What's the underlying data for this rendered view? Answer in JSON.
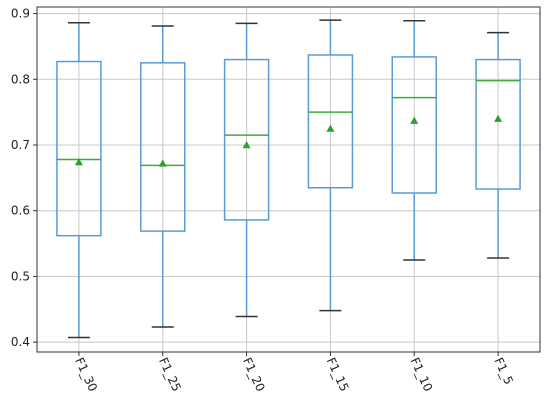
{
  "chart_data": {
    "type": "box",
    "title": "",
    "xlabel": "",
    "ylabel": "",
    "ylim": [
      0.385,
      0.91
    ],
    "grid": true,
    "yticks": [
      0.4,
      0.5,
      0.6,
      0.7,
      0.8,
      0.9
    ],
    "ytick_labels": [
      "0.4",
      "0.5",
      "0.6",
      "0.7",
      "0.8",
      "0.9"
    ],
    "categories": [
      "F1_30",
      "F1_25",
      "F1_20",
      "F1_15",
      "F1_10",
      "F1_5"
    ],
    "boxes": [
      {
        "label": "F1_30",
        "whisker_low": 0.407,
        "q1": 0.562,
        "median": 0.678,
        "q3": 0.827,
        "whisker_high": 0.886,
        "mean": 0.674
      },
      {
        "label": "F1_25",
        "whisker_low": 0.423,
        "q1": 0.569,
        "median": 0.669,
        "q3": 0.825,
        "whisker_high": 0.881,
        "mean": 0.672
      },
      {
        "label": "F1_20",
        "whisker_low": 0.439,
        "q1": 0.586,
        "median": 0.715,
        "q3": 0.83,
        "whisker_high": 0.885,
        "mean": 0.7
      },
      {
        "label": "F1_15",
        "whisker_low": 0.448,
        "q1": 0.635,
        "median": 0.75,
        "q3": 0.837,
        "whisker_high": 0.89,
        "mean": 0.725
      },
      {
        "label": "F1_10",
        "whisker_low": 0.525,
        "q1": 0.627,
        "median": 0.772,
        "q3": 0.834,
        "whisker_high": 0.889,
        "mean": 0.737
      },
      {
        "label": "F1_5",
        "whisker_low": 0.528,
        "q1": 0.633,
        "median": 0.798,
        "q3": 0.83,
        "whisker_high": 0.871,
        "mean": 0.74
      }
    ],
    "colors": {
      "box": "#5b9bd5",
      "median": "#3cab3c",
      "mean": "#2ca02c",
      "whisker_cap": "#333333",
      "grid": "#c8c8c8",
      "axis": "#333333"
    }
  }
}
